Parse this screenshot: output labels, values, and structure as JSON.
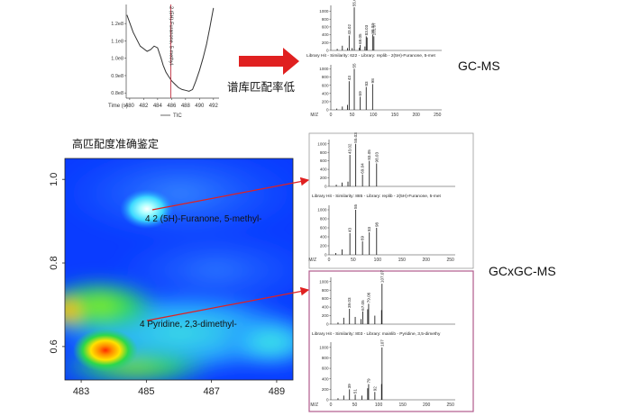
{
  "top": {
    "warning_text": "谱库匹配率低",
    "gcms_label": "GC-MS"
  },
  "lower": {
    "heading": "高匹配度准确鉴定",
    "gcxgc_label": "GCxGC-MS"
  },
  "colors": {
    "arrow_red": "#e02020",
    "panel_border": "#b05a8c",
    "tic_marker": "#c03040",
    "heatmap_background": "#0a3cff"
  },
  "chart_data": [
    {
      "id": "tic",
      "type": "line",
      "series": [
        {
          "name": "TIC",
          "x": [
            479.6,
            480.5,
            481.5,
            482.5,
            483.0,
            483.5,
            484.0,
            484.5,
            484.8,
            485.2,
            485.5,
            486.0,
            486.5,
            487.0,
            487.5,
            488.0,
            488.5,
            489.0,
            489.5,
            490.0,
            490.5,
            491.0,
            491.5,
            492.0
          ],
          "y": [
            125000000.0,
            115000000.0,
            107000000.0,
            104000000.0,
            105000000.0,
            107000000.0,
            106000000.0,
            100000000.0,
            96000000.0,
            92000000.0,
            90000000.0,
            87000000.0,
            85000000.0,
            83000000.0,
            82000000.0,
            81500000.0,
            81000000.0,
            82000000.0,
            87000000.0,
            93000000.0,
            100000000.0,
            108000000.0,
            118000000.0,
            129000000.0
          ]
        }
      ],
      "xlabel": "Time (s)",
      "xticks": [
        480,
        482,
        484,
        486,
        488,
        490,
        492
      ],
      "yticks": [
        80000000.0,
        90000000.0,
        100000000.0,
        110000000.0,
        120000000.0
      ],
      "ytick_labels": [
        "0.8e8",
        "0.9e8",
        "1.0e8",
        "1.1e8",
        "1.2e8"
      ],
      "xlim": [
        479.5,
        492.8
      ],
      "ylim": [
        77000000.0,
        131000000.0
      ],
      "marker": {
        "x": 485.9,
        "label": "2 (5H)-Furanone, 5-methyl-"
      },
      "legend": [
        "TIC"
      ]
    },
    {
      "id": "gcms-spectra",
      "type": "bar",
      "caption": "Library Hit - Similarity: 622 - Library: replib - 2(5H)-Furanone, 5-met",
      "xlabel": "M/Z",
      "xlim": [
        0,
        260
      ],
      "xticks": [
        0,
        50,
        100,
        150,
        200,
        250
      ],
      "top_series": {
        "x": [
          15,
          27,
          39,
          43,
          50,
          55,
          67,
          69,
          80,
          83,
          85,
          98,
          101
        ],
        "y": [
          40,
          120,
          60,
          380,
          60,
          1100,
          70,
          140,
          100,
          360,
          330,
          400,
          360
        ],
        "ylim": [
          0,
          1150
        ],
        "peak_labels": [
          "55.04",
          "43.02",
          "69.05",
          "83.03",
          "98.02",
          "101.07"
        ]
      },
      "bottom_series": {
        "x": [
          14,
          27,
          39,
          43,
          55,
          69,
          83,
          98
        ],
        "y": [
          30,
          80,
          120,
          700,
          1000,
          320,
          560,
          630
        ],
        "ylim": [
          0,
          1100
        ],
        "peak_labels": [
          "43",
          "55",
          "69",
          "83",
          "98"
        ]
      }
    },
    {
      "id": "gcxgc-contour",
      "type": "heatmap",
      "xlim": [
        482.5,
        489.5
      ],
      "ylim": [
        0.52,
        1.05
      ],
      "xticks": [
        483,
        485,
        487,
        489
      ],
      "yticks": [
        0.6,
        0.8,
        1.0
      ],
      "annotations": [
        "4 2 (5H)-Furanone, 5-methyl-",
        "4 Pyridine, 2,3-dimethyl-"
      ]
    },
    {
      "id": "gcxgc-spectra-furanone",
      "type": "bar",
      "caption": "Library Hit - Similarity: 885 - Library: replib - 2(5H)-Furanone, 5-met",
      "xlabel": "M/Z",
      "xlim": [
        0,
        260
      ],
      "xticks": [
        0,
        50,
        100,
        150,
        200,
        250
      ],
      "top_series": {
        "x": [
          15,
          27,
          39,
          43,
          55,
          69,
          83,
          98
        ],
        "y": [
          40,
          90,
          110,
          740,
          1000,
          280,
          600,
          540
        ],
        "ylim": [
          0,
          1100
        ],
        "peak_labels": [
          "55.03",
          "43.02",
          "69.04",
          "83.05",
          "98.03"
        ]
      },
      "bottom_series": {
        "x": [
          14,
          27,
          43,
          55,
          69,
          83,
          98
        ],
        "y": [
          40,
          120,
          480,
          1000,
          300,
          500,
          600
        ],
        "ylim": [
          0,
          1100
        ],
        "peak_labels": [
          "43",
          "55",
          "69",
          "83",
          "98"
        ]
      }
    },
    {
      "id": "gcxgc-spectra-pyridine",
      "type": "bar",
      "caption": "Library Hit - Similarity: 803 - Library: mainlib - Pyridine, 3,5-dimethy",
      "xlabel": "M/Z",
      "xlim": [
        0,
        260
      ],
      "xticks": [
        0,
        50,
        100,
        150,
        200,
        250
      ],
      "top_series": {
        "x": [
          15,
          27,
          39,
          51,
          63,
          67,
          77,
          79,
          92,
          106,
          107
        ],
        "y": [
          40,
          150,
          360,
          170,
          120,
          300,
          350,
          480,
          200,
          330,
          950
        ],
        "ylim": [
          0,
          1100
        ],
        "peak_labels": [
          "39.03",
          "67.05",
          "79.06",
          "107.07"
        ]
      },
      "bottom_series": {
        "x": [
          15,
          27,
          39,
          51,
          65,
          77,
          79,
          92,
          106,
          107
        ],
        "y": [
          30,
          80,
          200,
          100,
          80,
          220,
          300,
          150,
          300,
          1000
        ],
        "ylim": [
          0,
          1100
        ],
        "peak_labels": [
          "39",
          "51",
          "79",
          "92",
          "107"
        ]
      }
    }
  ]
}
